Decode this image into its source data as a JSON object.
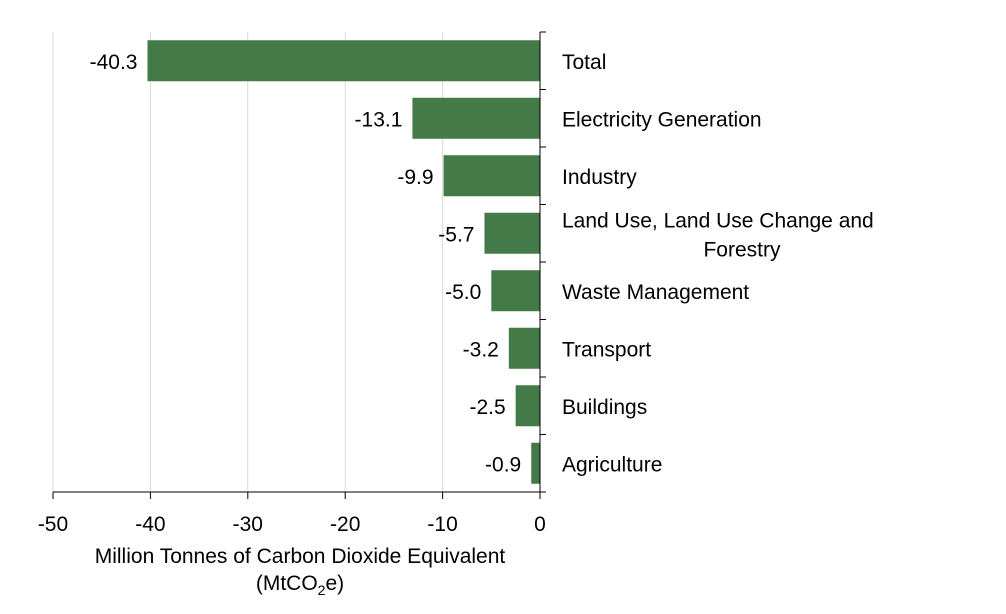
{
  "chart_data": {
    "type": "bar",
    "orientation": "horizontal",
    "categories": [
      "Total",
      "Electricity Generation",
      "Industry",
      "Land Use, Land Use Change and Forestry",
      "Waste Management",
      "Transport",
      "Buildings",
      "Agriculture"
    ],
    "category_lines": [
      [
        "Total"
      ],
      [
        "Electricity Generation"
      ],
      [
        "Industry"
      ],
      [
        "Land Use, Land Use Change and",
        "Forestry"
      ],
      [
        "Waste Management"
      ],
      [
        "Transport"
      ],
      [
        "Buildings"
      ],
      [
        "Agriculture"
      ]
    ],
    "values": [
      -40.3,
      -13.1,
      -9.9,
      -5.7,
      -5.0,
      -3.2,
      -2.5,
      -0.9
    ],
    "value_labels": [
      "-40.3",
      "-13.1",
      "-9.9",
      "-5.7",
      "-5.0",
      "-3.2",
      "-2.5",
      "-0.9"
    ],
    "xlim": [
      -50,
      0
    ],
    "xticks": [
      -50,
      -40,
      -30,
      -20,
      -10,
      0
    ],
    "xtick_labels": [
      "-50",
      "-40",
      "-30",
      "-20",
      "-10",
      "0"
    ],
    "xlabel_line1": "Million Tonnes of Carbon Dioxide Equivalent",
    "xlabel_line2_prefix": "(MtCO",
    "xlabel_line2_sub": "2",
    "xlabel_line2_suffix": "e)",
    "grid": "vertical",
    "bar_color": "#437a47",
    "grid_color": "#d9d9d9"
  }
}
